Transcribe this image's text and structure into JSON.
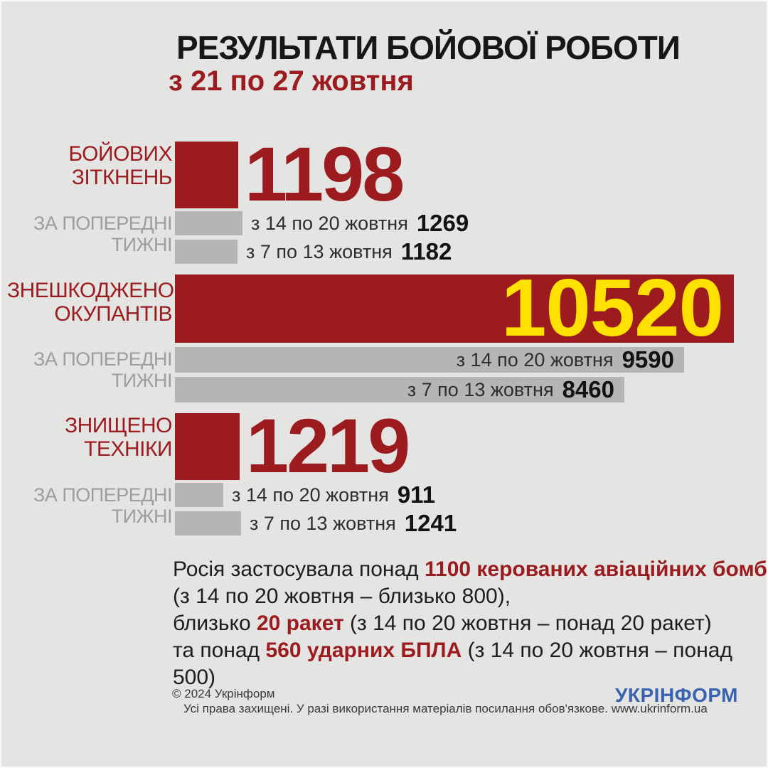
{
  "title": "РЕЗУЛЬТАТИ БОЙОВОЇ РОБОТИ",
  "subtitle": "з 21 по 27 жовтня",
  "colors": {
    "red": "#9B1B1F",
    "yellow": "#FFE100",
    "gray_bar": "#B5B5B4",
    "gray_label": "#9D9D9C",
    "background": "#E4E4E2",
    "text": "#1D1D1B",
    "logo_blue": "#3A62AE"
  },
  "chart_data": {
    "type": "bar",
    "orientation": "horizontal",
    "title": "РЕЗУЛЬТАТИ БОЙОВОЇ РОБОТИ з 21 по 27 жовтня",
    "legend_position": "none",
    "grid": false,
    "groups": [
      {
        "label_lines": [
          "БОЙОВИХ",
          "ЗІТКНЕНЬ"
        ],
        "current": {
          "value": 1198
        },
        "value_position": "outside-right",
        "prev_caption_lines": [
          "ЗА ПОПЕРЕДНІ",
          "ТИЖНІ"
        ],
        "previous": [
          {
            "period": "з 14 по 20 жовтня",
            "value": 1269
          },
          {
            "period": "з 7 по 13 жовтня",
            "value": 1182
          }
        ],
        "prev_text_position": "outside"
      },
      {
        "label_lines": [
          "ЗНЕШКОДЖЕНО",
          "ОКУПАНТІВ"
        ],
        "current": {
          "value": 10520
        },
        "value_position": "inside",
        "prev_caption_lines": [
          "ЗА ПОПЕРЕДНІ",
          "ТИЖНІ"
        ],
        "previous": [
          {
            "period": "з 14 по 20 жовтня",
            "value": 9590
          },
          {
            "period": "з 7 по 13 жовтня",
            "value": 8460
          }
        ],
        "prev_text_position": "inside"
      },
      {
        "label_lines": [
          "ЗНИЩЕНО",
          "ТЕХНІКИ"
        ],
        "current": {
          "value": 1219
        },
        "value_position": "outside-right",
        "prev_caption_lines": [
          "ЗА ПОПЕРЕДНІ",
          "ТИЖНІ"
        ],
        "previous": [
          {
            "period": "з 14 по 20 жовтня",
            "value": 911
          },
          {
            "period": "з 7 по 13 жовтня",
            "value": 1241
          }
        ],
        "prev_text_position": "outside"
      }
    ]
  },
  "notes_lines": [
    [
      {
        "text": "Росія застосувала понад ",
        "style": "normal"
      },
      {
        "text": "1100 керованих авіаційних бомб",
        "style": "red-bold"
      }
    ],
    [
      {
        "text": "(з 14 по 20 жовтня – близько 800),",
        "style": "normal"
      }
    ],
    [
      {
        "text": "близько ",
        "style": "normal"
      },
      {
        "text": "20 ракет",
        "style": "red-bold"
      },
      {
        "text": " (з 14 по 20 жовтня – понад 20 ракет)",
        "style": "normal"
      }
    ],
    [
      {
        "text": "та понад ",
        "style": "normal"
      },
      {
        "text": "560 ударних БПЛА",
        "style": "red-bold"
      },
      {
        "text": " (з 14 по 20 жовтня – понад 500)",
        "style": "normal"
      }
    ]
  ],
  "footer": {
    "copyright": "© 2024 Укрінформ",
    "rights": "Усі права захищені. У разі використання матеріалів посилання обов'язкове. www.ukrinform.ua",
    "logo": "УКРІНФОРМ"
  }
}
